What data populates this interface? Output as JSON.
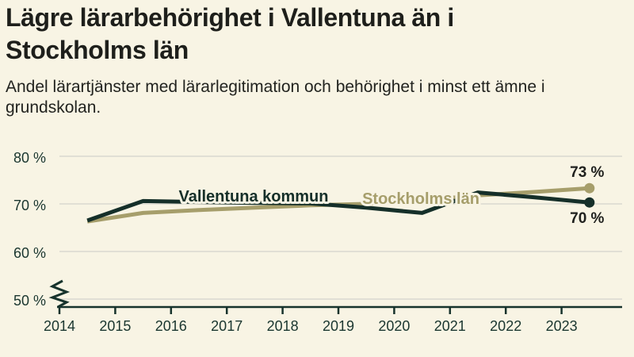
{
  "header": {
    "title": "Lägre lärarbehörighet i Vallentuna än i Stockholms län",
    "title_lines": [
      "Lägre lärarbehörighet i Vallentuna än i",
      "Stockholms län"
    ],
    "subtitle": "Andel lärartjänster med lärarlegitimation och behörighet i minst ett ämne i grundskolan.",
    "subtitle_lines": [
      "Andel lärartjänster med lärarlegitimation och behörighet i minst ett ämne i",
      "grundskolan."
    ]
  },
  "colors": {
    "background": "#f8f4e4",
    "title_text": "#1e1f1b",
    "axis_text": "#1a362f",
    "axis_line": "#17332c",
    "gridline": "#e1dfd5",
    "vallentuna_line": "#152f29",
    "stockholm_line": "#a69e6b",
    "value_label_text": "#20211e"
  },
  "chart_data": {
    "type": "line",
    "title": "Lägre lärarbehörighet i Vallentuna än i Stockholms län",
    "subtitle": "Andel lärartjänster med lärarlegitimation och behörighet i minst ett ämne i grundskolan.",
    "x": [
      2014.5,
      2015.5,
      2016.5,
      2017.5,
      2018.5,
      2019.5,
      2020.5,
      2021.5,
      2022.5,
      2023.5
    ],
    "series": [
      {
        "name": "Vallentuna kommun",
        "color": "#152f29",
        "values": [
          66.5,
          70.6,
          70.4,
          70.2,
          70.1,
          69.2,
          68.1,
          72.4,
          71.4,
          70.3
        ],
        "end_value_label": "70 %",
        "end_label_position": "below"
      },
      {
        "name": "Stockholms län",
        "color": "#a69e6b",
        "values": [
          66.3,
          68.1,
          68.7,
          69.2,
          69.7,
          70.0,
          70.7,
          71.8,
          72.5,
          73.3
        ],
        "end_value_label": "73 %",
        "end_label_position": "above"
      }
    ],
    "x_ticks": [
      2014,
      2015,
      2016,
      2017,
      2018,
      2019,
      2020,
      2021,
      2022,
      2023
    ],
    "y_ticks": [
      80,
      70,
      60,
      50
    ],
    "y_tick_suffix": " %",
    "ylim": [
      50,
      80
    ],
    "y_axis_break_below_50": true,
    "grid": "horizontal",
    "legend": "inline-labels"
  }
}
